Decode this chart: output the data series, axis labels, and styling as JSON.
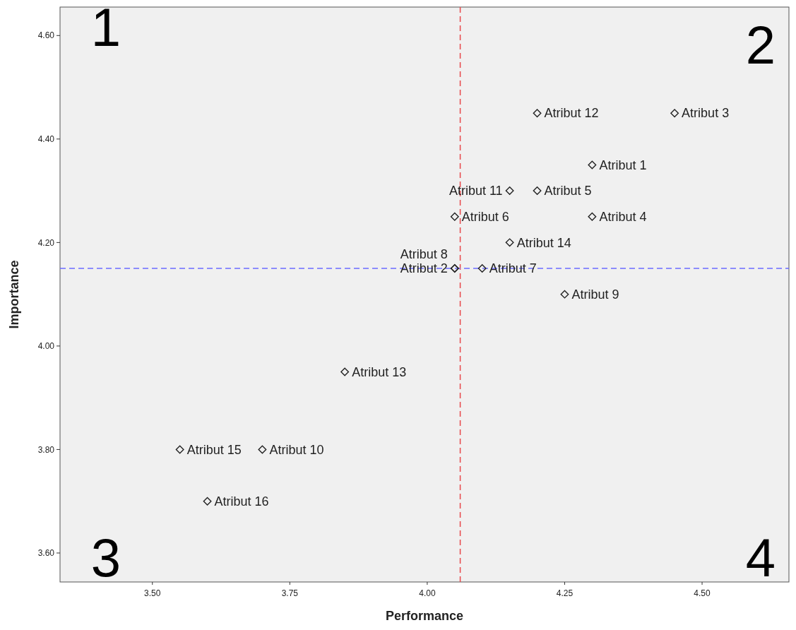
{
  "chart_data": {
    "type": "scatter",
    "xlabel": "Performance",
    "ylabel": "Importance",
    "x": [
      4.3,
      4.05,
      4.45,
      4.3,
      4.2,
      4.05,
      4.1,
      4.05,
      4.25,
      3.7,
      4.15,
      4.2,
      3.85,
      4.15,
      3.55,
      3.6
    ],
    "values": [
      4.35,
      4.15,
      4.45,
      4.25,
      4.3,
      4.25,
      4.15,
      4.15,
      4.1,
      3.8,
      4.3,
      4.45,
      3.95,
      4.2,
      3.8,
      3.7
    ],
    "color": "#222222",
    "marker": "diamond",
    "xlim": [
      3.332,
      4.658
    ],
    "ylim": [
      3.544,
      4.655
    ],
    "xticks": [
      {
        "value": 3.5,
        "label": "3.50"
      },
      {
        "value": 3.75,
        "label": "3.75"
      },
      {
        "value": 4.0,
        "label": "4.00"
      },
      {
        "value": 4.25,
        "label": "4.25"
      },
      {
        "value": 4.5,
        "label": "4.50"
      }
    ],
    "yticks": [
      {
        "value": 3.6,
        "label": "3.60"
      },
      {
        "value": 3.8,
        "label": "3.80"
      },
      {
        "value": 4.0,
        "label": "4.00"
      },
      {
        "value": 4.2,
        "label": "4.20"
      },
      {
        "value": 4.4,
        "label": "4.40"
      },
      {
        "value": 4.6,
        "label": "4.60"
      }
    ],
    "ref_lines": [
      {
        "axis": "x",
        "value": 4.06,
        "color": "#e8474a",
        "line_style": "dashed"
      },
      {
        "axis": "y",
        "value": 4.15,
        "color": "#6b6bff",
        "line_style": "dashed"
      }
    ],
    "annotations": [
      "1",
      "2",
      "3",
      "4",
      {
        "text": "Atribut 1",
        "x": 4.3,
        "y": 4.35
      },
      {
        "text": "Atribut 3",
        "x": 4.45,
        "y": 4.45
      },
      {
        "text": "Atribut 4",
        "x": 4.3,
        "y": 4.25
      },
      {
        "text": "Atribut 5",
        "x": 4.2,
        "y": 4.3
      },
      {
        "text": "Atribut 12",
        "x": 4.2,
        "y": 4.45
      },
      {
        "text": "Atribut 9",
        "x": 4.25,
        "y": 4.1
      },
      {
        "text": "Atribut 14",
        "x": 4.15,
        "y": 4.2
      },
      {
        "text": "Atribut 7",
        "x": 4.1,
        "y": 4.15
      },
      {
        "text": "Atribut 6",
        "x": 4.05,
        "y": 4.25
      },
      {
        "text": "Atribut 11",
        "x": 4.15,
        "y": 4.3
      },
      {
        "text": "Atribut 2",
        "x": 4.05,
        "y": 4.15
      },
      {
        "text": "Atribut 8",
        "x": 4.05,
        "y": 4.15
      },
      {
        "text": "Atribut 13",
        "x": 3.85,
        "y": 3.95
      },
      {
        "text": "Atribut 10",
        "x": 3.7,
        "y": 3.8
      },
      {
        "text": "Atribut 15",
        "x": 3.55,
        "y": 3.8
      },
      {
        "text": "Atribut 16",
        "x": 3.6,
        "y": 3.7
      }
    ]
  }
}
